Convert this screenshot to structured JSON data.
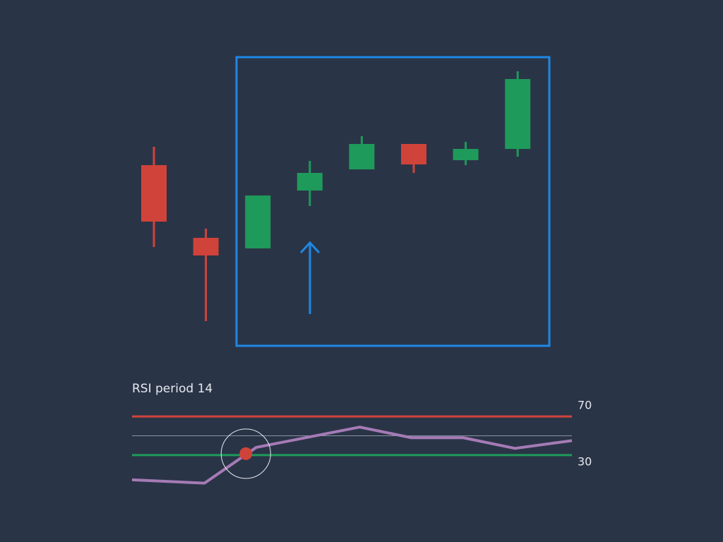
{
  "chart_data": [
    {
      "type": "candlestick",
      "open": [
        66.5,
        40.75,
        37,
        57.5,
        65,
        74,
        68.25,
        72.25
      ],
      "high": [
        73,
        44,
        55.75,
        68,
        76.75,
        74,
        74.75,
        99.75
      ],
      "low": [
        37.5,
        11.25,
        37,
        52,
        65,
        63.75,
        66.5,
        69.5
      ],
      "close": [
        46.5,
        34.5,
        55.75,
        63.75,
        74,
        66.75,
        72.25,
        97
      ],
      "up_color": "#1e9a5a",
      "down_color": "#d0433a",
      "ylim": [
        0,
        100
      ]
    },
    {
      "type": "line",
      "title": "RSI period 14",
      "x": [
        -0.4,
        1,
        2,
        4,
        5,
        6,
        7,
        8.1
      ],
      "values": [
        4.5,
        1,
        38,
        59,
        48,
        48,
        37,
        45
      ],
      "color": "#a57bb5",
      "xlim": [
        -0.4,
        8.1
      ],
      "ylim": [
        0,
        100
      ],
      "levels": [
        {
          "value": 70,
          "color": "#d0433a"
        },
        {
          "value": 30,
          "color": "#1e9a5a"
        }
      ],
      "midline": 50,
      "marker": {
        "x": 1.8,
        "value": 31.5,
        "color": "#d0433a"
      }
    }
  ]
}
